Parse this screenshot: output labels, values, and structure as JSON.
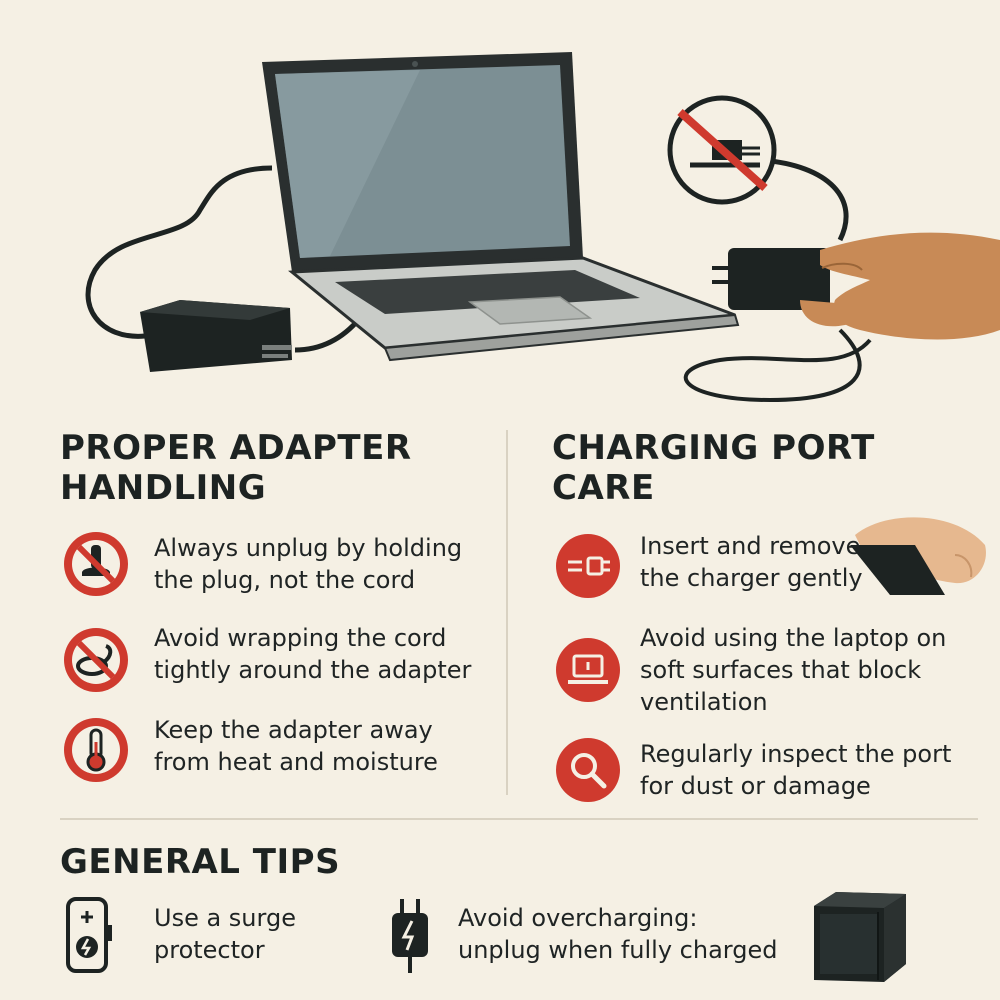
{
  "sections": {
    "adapter": {
      "title": "PROPER ADAPTER\nHANDLING",
      "tips": [
        {
          "text": "Always unplug by holding\nthe plug, not the cord",
          "icon": "no-pulling-cord-icon"
        },
        {
          "text": "Avoid wrapping the cord\ntightly around the adapter",
          "icon": "no-wrapping-cord-icon"
        },
        {
          "text": "Keep the adapter away\nfrom heat and moisture",
          "icon": "thermometer-icon"
        }
      ]
    },
    "port": {
      "title": "CHARGING PORT\nCARE",
      "tips": [
        {
          "text": "Insert and remove\nthe charger gently",
          "icon": "plug-insert-icon"
        },
        {
          "text": "Avoid using the laptop on\nsoft surfaces that block\nventilation",
          "icon": "laptop-icon"
        },
        {
          "text": "Regularly inspect the port\nfor dust or damage",
          "icon": "magnifier-icon"
        }
      ]
    },
    "general": {
      "title": "GENERAL TIPS",
      "tips": [
        {
          "text": "Use a surge\nprotector",
          "icon": "surge-protector-icon"
        },
        {
          "text": "Avoid overcharging:\nunplug when fully charged",
          "icon": "charging-plug-icon"
        }
      ]
    }
  },
  "colors": {
    "background": "#f5f0e4",
    "accent_red": "#cf3a2e",
    "dark": "#1d2322",
    "laptop_gray": "#c9ccc8",
    "screen": "#7c8f94",
    "skin": "#c88a56"
  }
}
